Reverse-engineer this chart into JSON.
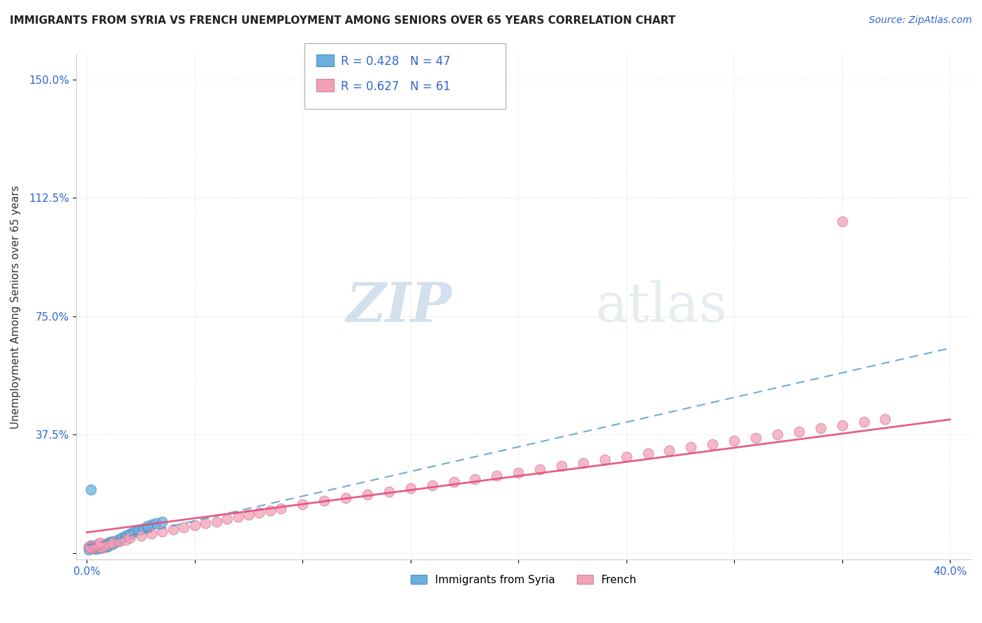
{
  "title": "IMMIGRANTS FROM SYRIA VS FRENCH UNEMPLOYMENT AMONG SENIORS OVER 65 YEARS CORRELATION CHART",
  "source": "Source: ZipAtlas.com",
  "ylabel": "Unemployment Among Seniors over 65 years",
  "xlim": [
    -0.005,
    0.41
  ],
  "ylim": [
    -0.02,
    1.58
  ],
  "legend1_R": "0.428",
  "legend1_N": "47",
  "legend2_R": "0.627",
  "legend2_N": "61",
  "blue_color": "#6ab0de",
  "pink_color": "#f4a0b5",
  "blue_line_color": "#4090c8",
  "pink_line_color": "#e0507a",
  "blue_scatter_x": [
    0.001,
    0.002,
    0.002,
    0.003,
    0.003,
    0.004,
    0.004,
    0.005,
    0.005,
    0.006,
    0.006,
    0.007,
    0.007,
    0.008,
    0.009,
    0.01,
    0.01,
    0.011,
    0.012,
    0.013,
    0.015,
    0.016,
    0.018,
    0.02,
    0.022,
    0.025,
    0.028,
    0.03,
    0.032,
    0.035,
    0.002,
    0.003,
    0.004,
    0.001,
    0.002,
    0.006,
    0.008,
    0.01,
    0.012,
    0.014,
    0.016,
    0.018,
    0.02,
    0.022,
    0.024,
    0.026,
    0.028
  ],
  "blue_scatter_y": [
    0.02,
    0.015,
    0.025,
    0.018,
    0.022,
    0.02,
    0.015,
    0.025,
    0.018,
    0.02,
    0.015,
    0.022,
    0.018,
    0.025,
    0.02,
    0.03,
    0.022,
    0.035,
    0.028,
    0.032,
    0.04,
    0.045,
    0.055,
    0.06,
    0.065,
    0.075,
    0.08,
    0.09,
    0.095,
    0.1,
    0.2,
    0.015,
    0.012,
    0.01,
    0.018,
    0.022,
    0.028,
    0.032,
    0.038,
    0.042,
    0.048,
    0.055,
    0.062,
    0.068,
    0.072,
    0.078,
    0.085
  ],
  "pink_scatter_x": [
    0.001,
    0.002,
    0.003,
    0.004,
    0.005,
    0.006,
    0.007,
    0.008,
    0.01,
    0.012,
    0.015,
    0.018,
    0.02,
    0.025,
    0.03,
    0.035,
    0.04,
    0.045,
    0.05,
    0.055,
    0.06,
    0.065,
    0.07,
    0.075,
    0.08,
    0.085,
    0.09,
    0.1,
    0.11,
    0.12,
    0.13,
    0.14,
    0.15,
    0.16,
    0.17,
    0.18,
    0.19,
    0.2,
    0.21,
    0.22,
    0.23,
    0.24,
    0.25,
    0.26,
    0.27,
    0.28,
    0.29,
    0.3,
    0.31,
    0.32,
    0.33,
    0.34,
    0.35,
    0.36,
    0.37,
    0.002,
    0.003,
    0.004,
    0.005,
    0.006,
    0.35
  ],
  "pink_scatter_y": [
    0.02,
    0.015,
    0.018,
    0.022,
    0.025,
    0.02,
    0.018,
    0.025,
    0.028,
    0.032,
    0.038,
    0.042,
    0.048,
    0.055,
    0.062,
    0.068,
    0.075,
    0.082,
    0.088,
    0.095,
    0.1,
    0.108,
    0.115,
    0.122,
    0.128,
    0.135,
    0.142,
    0.155,
    0.165,
    0.175,
    0.185,
    0.195,
    0.205,
    0.215,
    0.225,
    0.235,
    0.245,
    0.255,
    0.265,
    0.275,
    0.285,
    0.295,
    0.305,
    0.315,
    0.325,
    0.335,
    0.345,
    0.355,
    0.365,
    0.375,
    0.385,
    0.395,
    0.405,
    0.415,
    0.425,
    0.018,
    0.022,
    0.025,
    0.028,
    0.032,
    1.05
  ],
  "background_color": "#ffffff",
  "grid_color": "#dddddd",
  "y_ticks": [
    0.0,
    0.375,
    0.75,
    1.125,
    1.5
  ],
  "y_tick_labels": [
    "",
    "37.5%",
    "75.0%",
    "112.5%",
    "150.0%"
  ],
  "x_ticks": [
    0.0,
    0.05,
    0.1,
    0.15,
    0.2,
    0.25,
    0.3,
    0.35,
    0.4
  ],
  "x_tick_labels": [
    "0.0%",
    "",
    "",
    "",
    "",
    "",
    "",
    "",
    "40.0%"
  ]
}
